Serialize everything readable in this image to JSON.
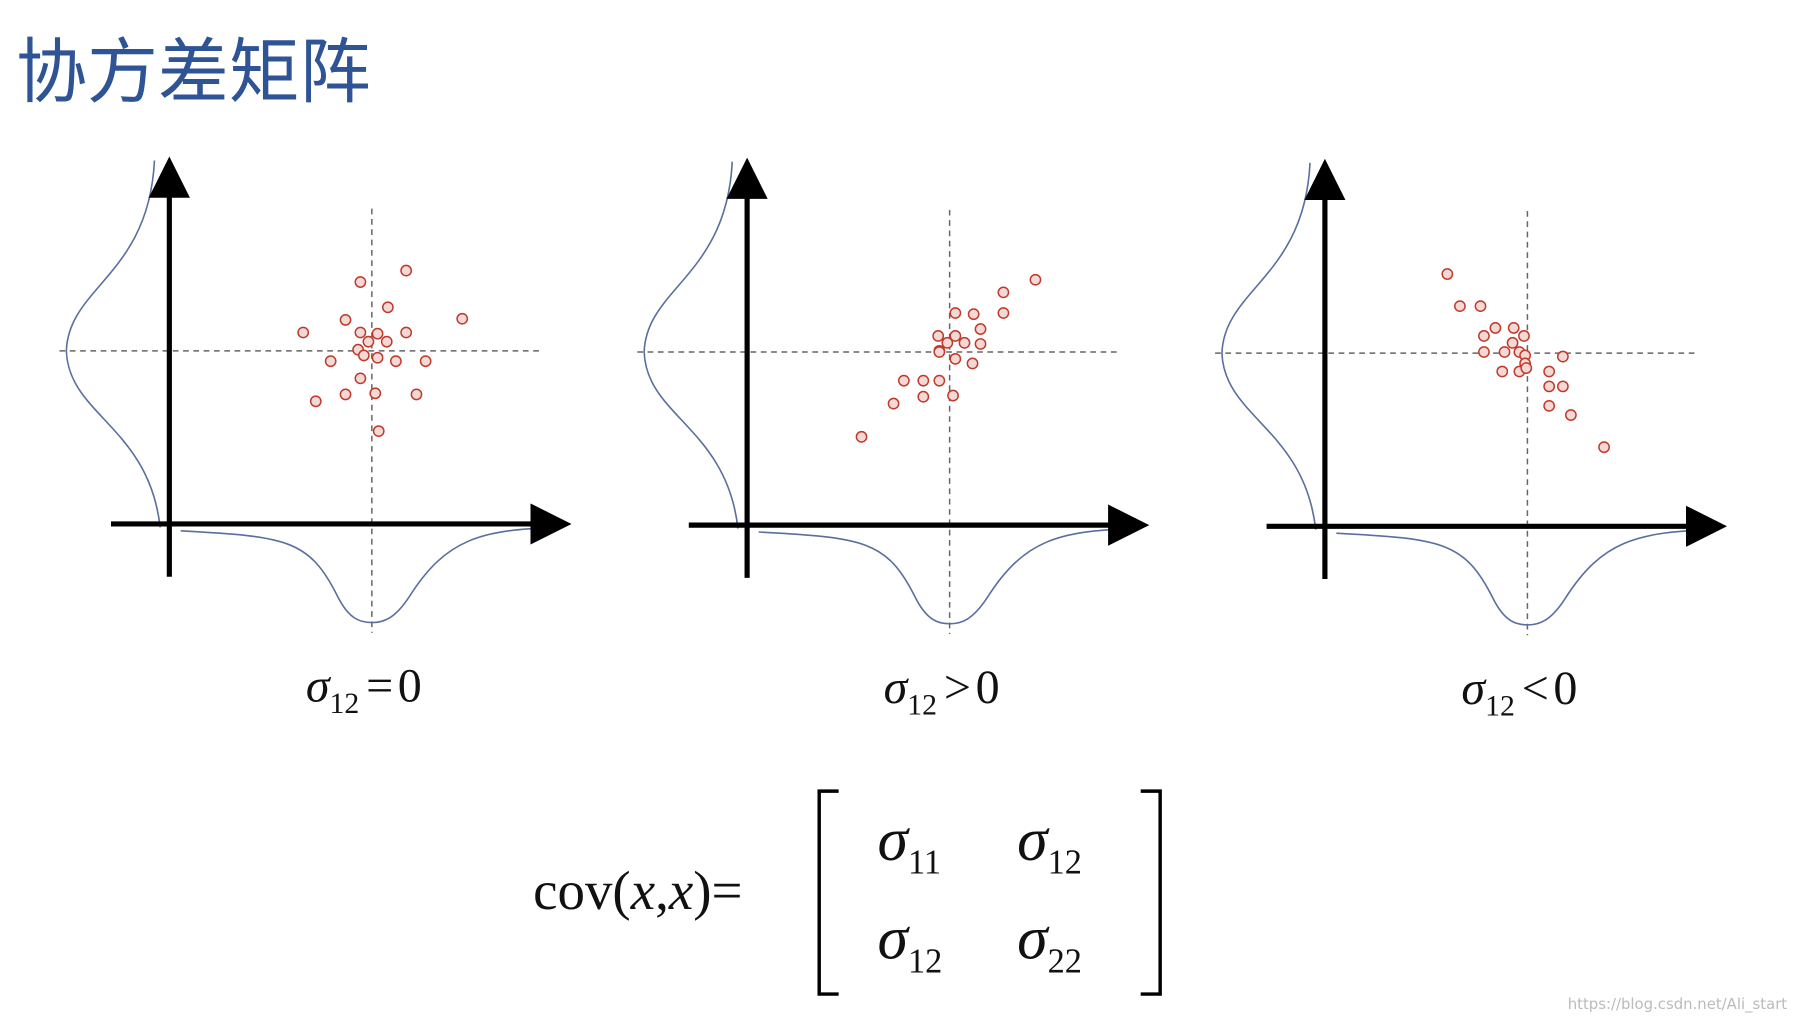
{
  "title": "协方差矩阵",
  "captions": [
    {
      "symbol": "σ",
      "sub": "12",
      "relation": "=",
      "rhs": "0"
    },
    {
      "symbol": "σ",
      "sub": "12",
      "relation": ">",
      "rhs": "0"
    },
    {
      "symbol": "σ",
      "sub": "12",
      "relation": "<",
      "rhs": "0"
    }
  ],
  "formula": {
    "lhs": [
      "cov(",
      "x",
      ",",
      "x",
      ")",
      "="
    ],
    "matrix": [
      [
        {
          "symbol": "σ",
          "sub": "11"
        },
        {
          "symbol": "σ",
          "sub": "12"
        }
      ],
      [
        {
          "symbol": "σ",
          "sub": "12"
        },
        {
          "symbol": "σ",
          "sub": "22"
        }
      ]
    ]
  },
  "watermark": "https://blog.csdn.net/Ali_start"
}
